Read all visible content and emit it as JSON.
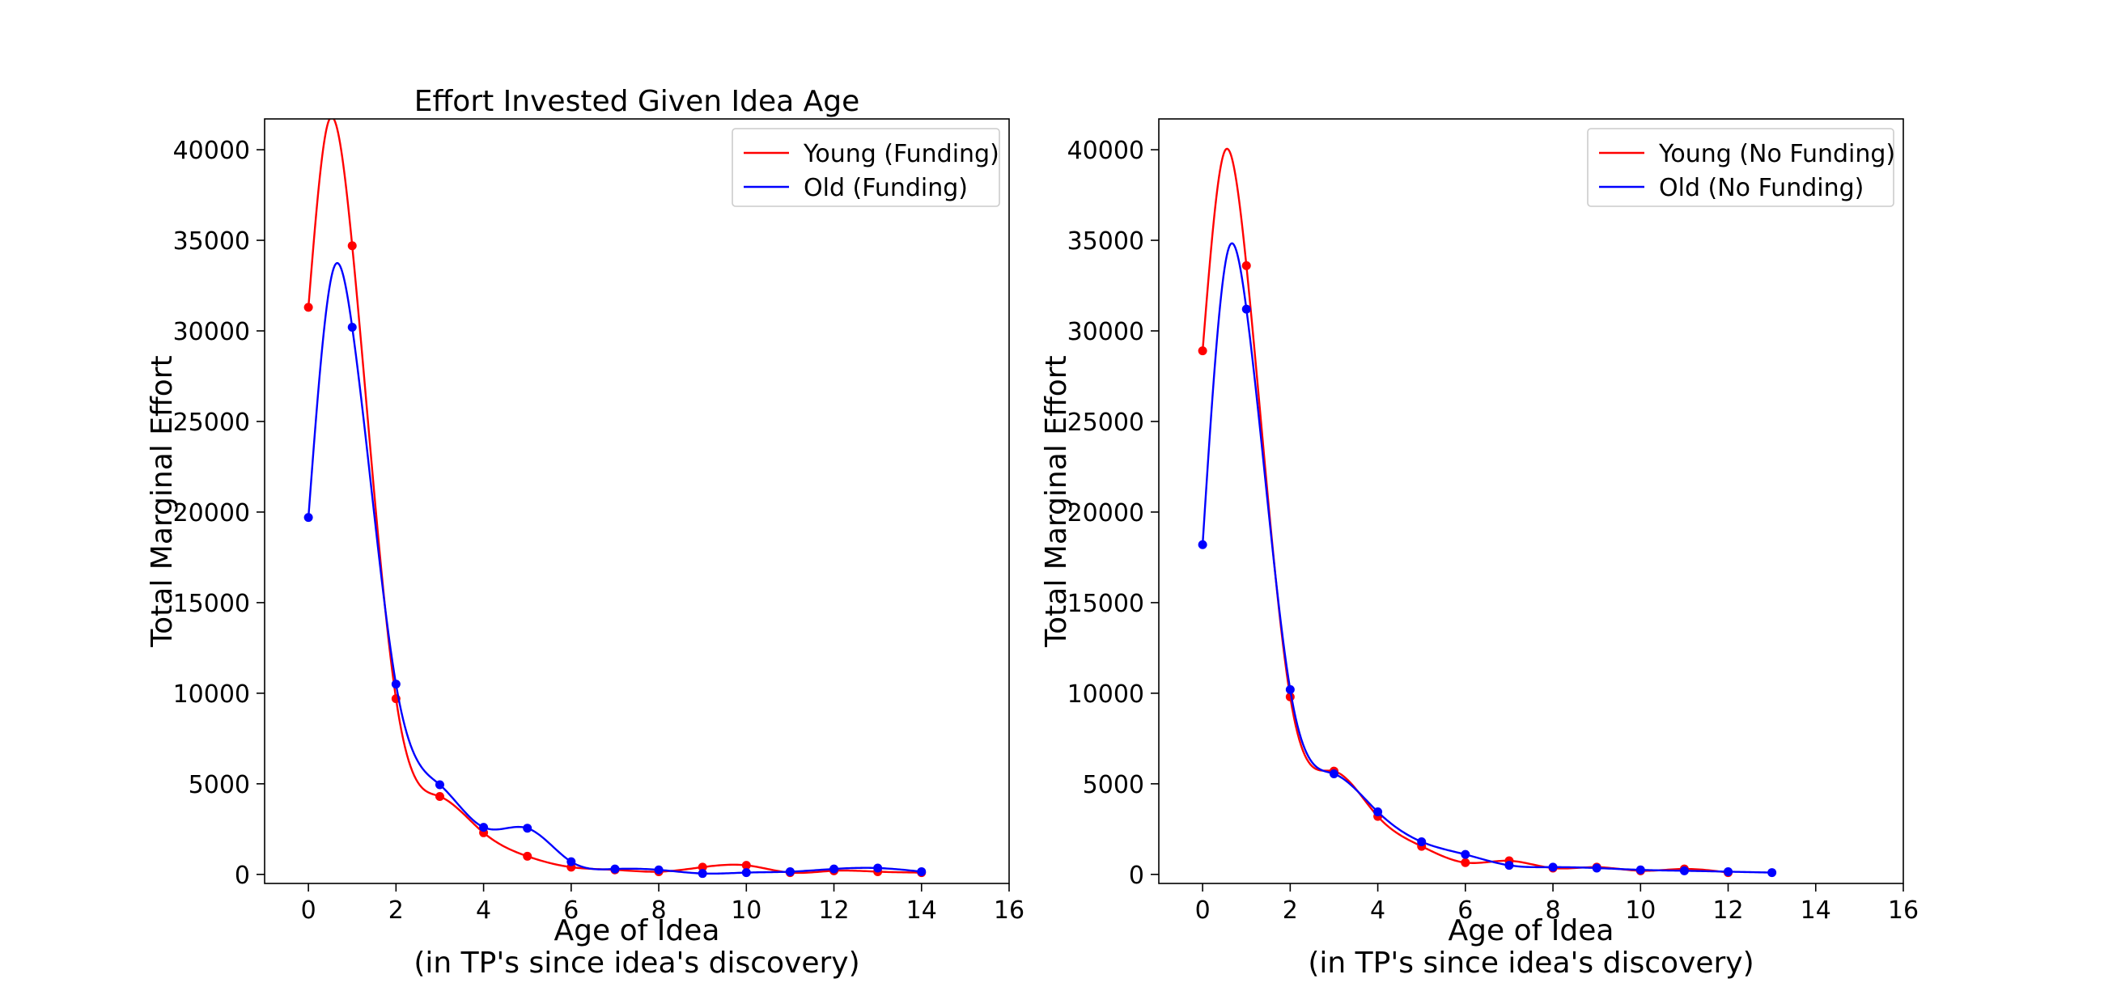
{
  "chart_data": [
    {
      "type": "line",
      "title": "Effort Invested Given Idea Age",
      "xlabel": "Age of Idea",
      "xlabel_line2": "(in TP's since idea's discovery)",
      "ylabel": "Total Marginal Effort",
      "xlim": [
        -1,
        16
      ],
      "ylim": [
        -500,
        41700
      ],
      "xticks": [
        0,
        2,
        4,
        6,
        8,
        10,
        12,
        14,
        16
      ],
      "yticks": [
        0,
        5000,
        10000,
        15000,
        20000,
        25000,
        30000,
        35000,
        40000
      ],
      "legend_position": "upper-right",
      "grid": false,
      "series": [
        {
          "name": "Young (Funding)",
          "color": "#ff0000",
          "x": [
            0,
            1,
            2,
            3,
            4,
            5,
            6,
            7,
            8,
            9,
            10,
            11,
            12,
            13,
            14
          ],
          "y": [
            31300,
            34700,
            9700,
            4300,
            2300,
            1000,
            400,
            250,
            150,
            400,
            500,
            100,
            200,
            150,
            100
          ],
          "peak": {
            "x": 0.45,
            "y": 41500
          }
        },
        {
          "name": "Old (Funding)",
          "color": "#0000ff",
          "x": [
            0,
            1,
            2,
            3,
            4,
            5,
            6,
            7,
            8,
            9,
            10,
            11,
            12,
            13,
            14
          ],
          "y": [
            19700,
            30200,
            10500,
            4950,
            2600,
            2550,
            700,
            300,
            250,
            50,
            100,
            150,
            300,
            350,
            150
          ],
          "peak": {
            "x": 0.6,
            "y": 33600
          }
        }
      ]
    },
    {
      "type": "line",
      "title": "",
      "xlabel": "Age of Idea",
      "xlabel_line2": "(in TP's since idea's discovery)",
      "ylabel": "Total Marginal Effort",
      "xlim": [
        -1,
        16
      ],
      "ylim": [
        -500,
        41700
      ],
      "xticks": [
        0,
        2,
        4,
        6,
        8,
        10,
        12,
        14,
        16
      ],
      "yticks": [
        0,
        5000,
        10000,
        15000,
        20000,
        25000,
        30000,
        35000,
        40000
      ],
      "legend_position": "upper-right",
      "grid": false,
      "series": [
        {
          "name": "Young (No Funding)",
          "color": "#ff0000",
          "x": [
            0,
            1,
            2,
            3,
            4,
            5,
            6,
            7,
            8,
            9,
            10,
            11,
            12
          ],
          "y": [
            28900,
            33600,
            9800,
            5700,
            3200,
            1550,
            650,
            750,
            350,
            400,
            200,
            300,
            100
          ],
          "peak": {
            "x": 0.5,
            "y": 39900
          }
        },
        {
          "name": "Old (No Funding)",
          "color": "#0000ff",
          "x": [
            0,
            1,
            2,
            3,
            4,
            5,
            6,
            7,
            8,
            9,
            10,
            11,
            12,
            13
          ],
          "y": [
            18200,
            31200,
            10200,
            5550,
            3450,
            1800,
            1100,
            500,
            400,
            350,
            250,
            200,
            150,
            100
          ],
          "peak": {
            "x": 0.6,
            "y": 34600
          }
        }
      ]
    }
  ]
}
